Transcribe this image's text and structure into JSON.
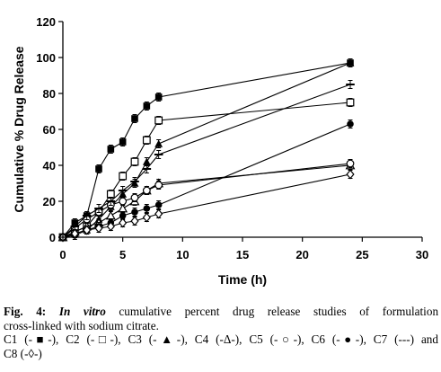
{
  "chart_data": {
    "type": "line",
    "xlabel": "Time (h)",
    "ylabel": "Cumulative % Drug Release",
    "xlim": [
      0,
      30
    ],
    "ylim": [
      0,
      120
    ],
    "x_ticks": [
      0,
      5,
      10,
      15,
      20,
      25,
      30
    ],
    "y_ticks": [
      0,
      20,
      40,
      60,
      80,
      100,
      120
    ],
    "grid": false,
    "series": [
      {
        "name": "C1",
        "marker": "filled-square",
        "x": [
          0,
          1,
          2,
          3,
          4,
          5,
          6,
          7,
          8,
          24
        ],
        "y": [
          0,
          8,
          12,
          38,
          49,
          53,
          66,
          73,
          78,
          97
        ]
      },
      {
        "name": "C2",
        "marker": "open-square",
        "x": [
          0,
          1,
          2,
          3,
          4,
          5,
          6,
          7,
          8,
          24
        ],
        "y": [
          0,
          3,
          6,
          14,
          24,
          34,
          42,
          54,
          65,
          75
        ]
      },
      {
        "name": "C3",
        "marker": "filled-triangle",
        "x": [
          0,
          1,
          2,
          3,
          4,
          5,
          6,
          7,
          8,
          24
        ],
        "y": [
          0,
          2,
          4,
          10,
          17,
          24,
          30,
          42,
          52,
          97
        ]
      },
      {
        "name": "C4",
        "marker": "open-triangle",
        "x": [
          0,
          1,
          2,
          3,
          4,
          5,
          6,
          7,
          8,
          24
        ],
        "y": [
          0,
          3,
          6,
          8,
          12,
          16,
          20,
          26,
          30,
          40
        ]
      },
      {
        "name": "C5",
        "marker": "open-circle",
        "x": [
          0,
          1,
          2,
          3,
          4,
          5,
          6,
          7,
          8,
          24
        ],
        "y": [
          0,
          5,
          10,
          14,
          18,
          20,
          22,
          26,
          29,
          41
        ]
      },
      {
        "name": "C6",
        "marker": "filled-circle",
        "x": [
          0,
          1,
          2,
          3,
          4,
          5,
          6,
          7,
          8,
          24
        ],
        "y": [
          0,
          1,
          4,
          6,
          8,
          12,
          14,
          16,
          18,
          63
        ]
      },
      {
        "name": "C7",
        "marker": "dash",
        "x": [
          0,
          1,
          2,
          3,
          4,
          5,
          6,
          7,
          8,
          24
        ],
        "y": [
          0,
          6,
          12,
          16,
          20,
          26,
          31,
          38,
          46,
          85
        ]
      },
      {
        "name": "C8",
        "marker": "open-diamond",
        "x": [
          0,
          1,
          2,
          3,
          4,
          5,
          6,
          7,
          8,
          24
        ],
        "y": [
          0,
          2,
          4,
          5,
          6,
          8,
          9,
          11,
          13,
          35
        ]
      }
    ]
  },
  "caption": {
    "fig_label": "Fig. 4:",
    "fig_italic": "In vitro",
    "fig_rest_1": "cumulative percent drug release studies of formulation",
    "fig_rest_2": "cross-linked with sodium citrate.",
    "legend_line_1": "C1 (-■-), C2 (-□-), C3 (-▲-), C4 (-Δ-), C5 (-○-), C6 (-●-), C7 (---) and",
    "legend_line_2": "C8 (-◊-)"
  }
}
